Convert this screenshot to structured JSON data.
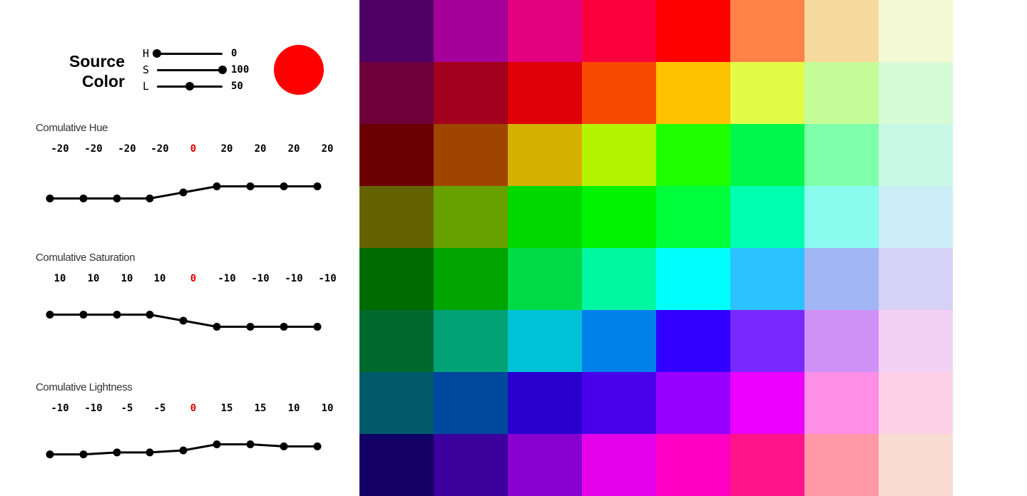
{
  "source": {
    "title_line1": "Source",
    "title_line2": "Color",
    "sliders": [
      {
        "letter": "H",
        "value": "0",
        "fraction": 0.0
      },
      {
        "letter": "S",
        "value": "100",
        "fraction": 1.0
      },
      {
        "letter": "L",
        "value": "50",
        "fraction": 0.5
      }
    ],
    "swatch_color": "#ff0000"
  },
  "sections": [
    {
      "label": "Comulative Hue",
      "values": [
        "-20",
        "-20",
        "-20",
        "-20",
        "0",
        "20",
        "20",
        "20",
        "20"
      ],
      "curve": [
        -20,
        -20,
        -20,
        -20,
        0,
        20,
        20,
        20,
        20
      ]
    },
    {
      "label": "Comulative Saturation",
      "values": [
        "10",
        "10",
        "10",
        "10",
        "0",
        "-10",
        "-10",
        "-10",
        "-10"
      ],
      "curve": [
        10,
        10,
        10,
        10,
        0,
        -10,
        -10,
        -10,
        -10
      ]
    },
    {
      "label": "Comulative Lightness",
      "values": [
        "-10",
        "-10",
        "-5",
        "-5",
        "0",
        "15",
        "15",
        "10",
        "10"
      ],
      "curve": [
        -10,
        -10,
        -5,
        -5,
        0,
        15,
        15,
        10,
        10
      ]
    }
  ],
  "palette": [
    [
      "#4f0064",
      "#a6009a",
      "#e2007f",
      "#f9003b",
      "#ff0000",
      "#ff8248",
      "#f6d99c",
      "#f3f9d4"
    ],
    [
      "#6e003a",
      "#a2001c",
      "#de0006",
      "#f54a00",
      "#ffc200",
      "#e2fb47",
      "#c6fc98",
      "#d6fbd5"
    ],
    [
      "#6b0000",
      "#a04500",
      "#d4b000",
      "#b4f300",
      "#1fff00",
      "#00f84d",
      "#80ffab",
      "#c9f9e6"
    ],
    [
      "#656300",
      "#66a100",
      "#00d800",
      "#00f300",
      "#00ff3a",
      "#00ffb0",
      "#8afcef",
      "#cbedf5"
    ],
    [
      "#006b00",
      "#00a500",
      "#00da46",
      "#00f8a2",
      "#00ffff",
      "#2cc2ff",
      "#a1b7f5",
      "#d6d1f6"
    ],
    [
      "#006a2c",
      "#00a276",
      "#00c2d6",
      "#0081ea",
      "#3200ff",
      "#7829ff",
      "#d091f7",
      "#f3d0f6"
    ],
    [
      "#005a6a",
      "#00489d",
      "#2a00cf",
      "#4700e8",
      "#9800ff",
      "#ec00ff",
      "#ff8ee6",
      "#fdd0e7"
    ],
    [
      "#130066",
      "#3b009d",
      "#8800cf",
      "#e400e8",
      "#ff00c4",
      "#ff1489",
      "#ff99a5",
      "#f8dcd2"
    ]
  ]
}
